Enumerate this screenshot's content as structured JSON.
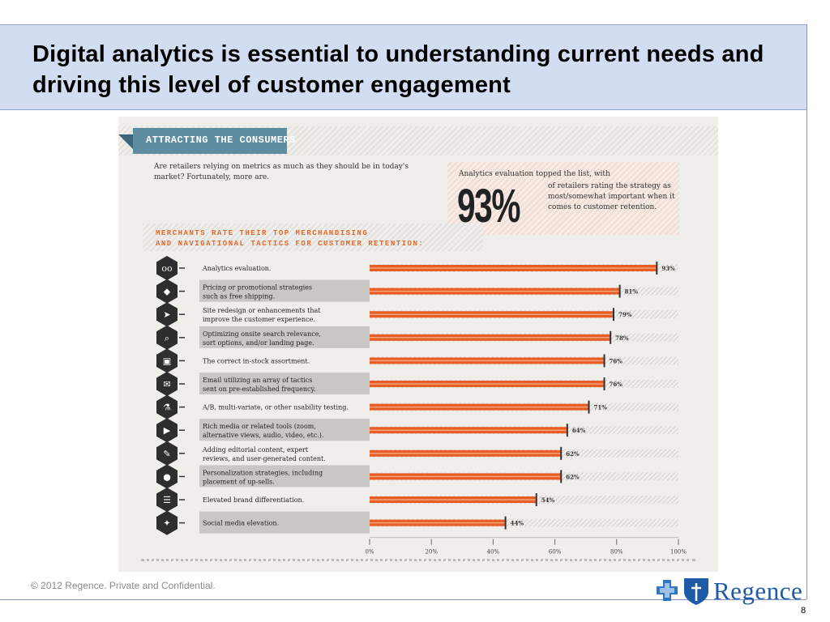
{
  "slide": {
    "title": "Digital analytics is essential to understanding current needs and driving this level of customer engagement",
    "footer": "© 2012 Regence.  Private and Confidential.",
    "page_number": "8",
    "logo_text": "Regence"
  },
  "infographic": {
    "banner": "ATTRACTING THE CONSUMERS",
    "intro": "Are retailers relying on metrics as much as they should be in today's market? Fortunately, more are.",
    "callout_label": "Analytics evaluation topped the list, with",
    "callout_big": "93%",
    "callout_desc": "of retailers rating the strategy as most/somewhat important when it comes to customer retention.",
    "subhead_line1": "MERCHANTS RATE THEIR TOP MERCHANDISING",
    "subhead_line2": "AND NAVIGATIONAL TACTICS FOR CUSTOMER RETENTION:"
  },
  "chart_data": {
    "type": "bar",
    "orientation": "horizontal",
    "categories": [
      [
        "Analytics evaluation."
      ],
      [
        "Pricing or promotional strategies",
        "such as  free shipping."
      ],
      [
        "Site redesign or enhancements that",
        "improve the customer experience."
      ],
      [
        "Optimizing onsite search relevance,",
        "sort options, and/or landing page."
      ],
      [
        "The correct in-stock assortment."
      ],
      [
        "Email utilizing an array of tactics",
        "sent on pre-established frequency."
      ],
      [
        "A/B, multi-variate, or other usability testing."
      ],
      [
        "Rich media or related tools (zoom,",
        "alternative views, audio, video, etc.)."
      ],
      [
        "Adding editorial content, expert",
        "reviews, and user-generated content."
      ],
      [
        "Personalization strategies, including",
        "placement of up-sells."
      ],
      [
        "Elevated brand differentiation."
      ],
      [
        "Social media elevation."
      ]
    ],
    "values": [
      93,
      81,
      79,
      78,
      76,
      76,
      71,
      64,
      62,
      62,
      54,
      44
    ],
    "value_labels": [
      "93%",
      "81%",
      "79%",
      "78%",
      "76%",
      "76%",
      "71%",
      "64%",
      "62%",
      "62%",
      "54%",
      "44%"
    ],
    "icons": [
      "glasses-icon",
      "price-tag-icon",
      "cursor-icon",
      "magnifier-icon",
      "box-icon",
      "envelopes-icon",
      "flask-icon",
      "video-icon",
      "pen-icon",
      "person-icon",
      "ladder-icon",
      "megaphone-icon"
    ],
    "x_ticks": [
      "0%",
      "20%",
      "40%",
      "60%",
      "80%",
      "100%"
    ],
    "xlim": [
      0,
      100
    ],
    "colors": {
      "bar": "#e85d25",
      "bar_stripe": "#f4a47c",
      "track": "#c8c6c3",
      "label_bg": "#c9c7c4",
      "icon_bg": "#2e2e2e"
    }
  }
}
